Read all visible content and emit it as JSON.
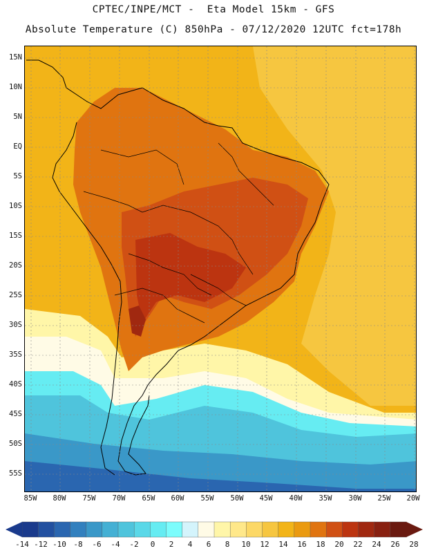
{
  "header": {
    "line1": "CPTEC/INPE/MCT -  Eta Model 15km - GFS",
    "line2": "Absolute Temperature (C) 850hPa - 07/12/2020 12UTC fct=178h"
  },
  "axes": {
    "lat_labels": [
      "15N",
      "10N",
      "5N",
      "EQ",
      "5S",
      "10S",
      "15S",
      "20S",
      "25S",
      "30S",
      "35S",
      "40S",
      "45S",
      "50S",
      "55S"
    ],
    "lon_labels": [
      "85W",
      "80W",
      "75W",
      "70W",
      "65W",
      "60W",
      "55W",
      "50W",
      "45W",
      "40W",
      "35W",
      "30W",
      "25W",
      "20W"
    ]
  },
  "colorbar": {
    "labels": [
      "-14",
      "-12",
      "-10",
      "-8",
      "-6",
      "-4",
      "-2",
      "0",
      "2",
      "4",
      "6",
      "8",
      "10",
      "12",
      "14",
      "16",
      "18",
      "20",
      "22",
      "24",
      "26",
      "28"
    ],
    "colors": [
      "#1a3a8c",
      "#2250a0",
      "#2a66b0",
      "#3280be",
      "#3a98c8",
      "#44b0d4",
      "#4fc4dc",
      "#5ad8e8",
      "#66ecf2",
      "#7cfcfc",
      "#d4f4fc",
      "#fffbe6",
      "#fff6a8",
      "#ffe88a",
      "#fcd866",
      "#f6c640",
      "#f2b418",
      "#ea9a10",
      "#e07410",
      "#d05014",
      "#bc3410",
      "#a02810",
      "#882010",
      "#6a1a10"
    ]
  },
  "palette": {
    "ocean_warm": "#f2b418",
    "ocean_mid": "#f6c640",
    "land_hot": "#d05014",
    "land_warm": "#e07410",
    "cool": "#4fc4dc",
    "cold": "#3a98c8",
    "coast": "#000000",
    "grid": "#999999"
  }
}
